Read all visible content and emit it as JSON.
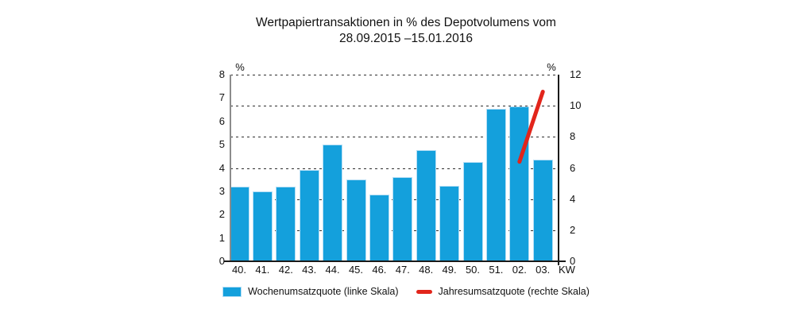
{
  "title": {
    "line1": "Wertpapiertransaktionen in % des Depotvolumens vom",
    "line2": "28.09.2015 –15.01.2016"
  },
  "chart_data": {
    "type": "bar",
    "categories": [
      "40.",
      "41.",
      "42.",
      "43.",
      "44.",
      "45.",
      "46.",
      "47.",
      "48.",
      "49.",
      "50.",
      "51.",
      "02.",
      "03."
    ],
    "x_axis_label": "KW",
    "left_axis": {
      "unit": "%",
      "min": 0,
      "max": 8,
      "ticks": [
        0,
        1,
        2,
        3,
        4,
        5,
        6,
        7,
        8
      ]
    },
    "right_axis": {
      "unit": "%",
      "min": 0,
      "max": 12,
      "ticks": [
        0,
        2,
        4,
        6,
        8,
        10,
        12
      ]
    },
    "gridlines": {
      "right_axis_values": [
        2,
        4,
        6,
        8,
        10,
        12
      ],
      "style": "dashed",
      "color": "#2e2e2e"
    },
    "series": [
      {
        "name": "Wochenumsatzquote (linke Skala)",
        "type": "bar",
        "axis": "left",
        "color": "#14A0DC",
        "values": [
          3.2,
          3.0,
          3.2,
          3.9,
          5.0,
          3.5,
          2.85,
          3.6,
          4.75,
          3.25,
          4.25,
          6.55,
          6.65,
          4.35
        ]
      },
      {
        "name": "Jahresumsatzquote (rechte Skala)",
        "type": "line",
        "axis": "right",
        "color": "#E2251B",
        "points": [
          {
            "category": "02.",
            "value": 6.4
          },
          {
            "category": "03.",
            "value": 10.9
          }
        ]
      }
    ]
  },
  "legend": {
    "items": [
      {
        "label": "Wochenumsatzquote (linke Skala)",
        "swatch": "bar",
        "color": "#14A0DC"
      },
      {
        "label": "Jahresumsatzquote (rechte Skala)",
        "swatch": "line",
        "color": "#E2251B"
      }
    ]
  }
}
